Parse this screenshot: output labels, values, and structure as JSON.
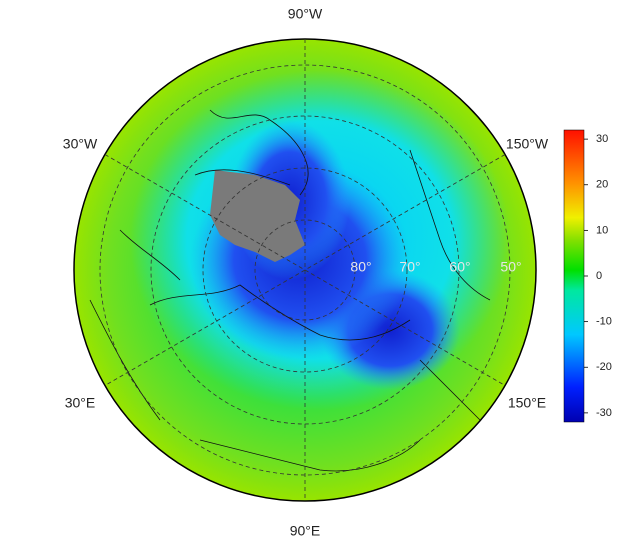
{
  "map": {
    "longitude_labels": [
      "90°W",
      "30°W",
      "150°W",
      "30°E",
      "150°E",
      "90°E"
    ],
    "latitude_labels": [
      "80°",
      "70°",
      "60°",
      "50°"
    ]
  },
  "colorbar": {
    "lim": [
      -32,
      32
    ],
    "ticks": [
      30,
      20,
      10,
      0,
      -10,
      -20,
      -30
    ]
  }
}
